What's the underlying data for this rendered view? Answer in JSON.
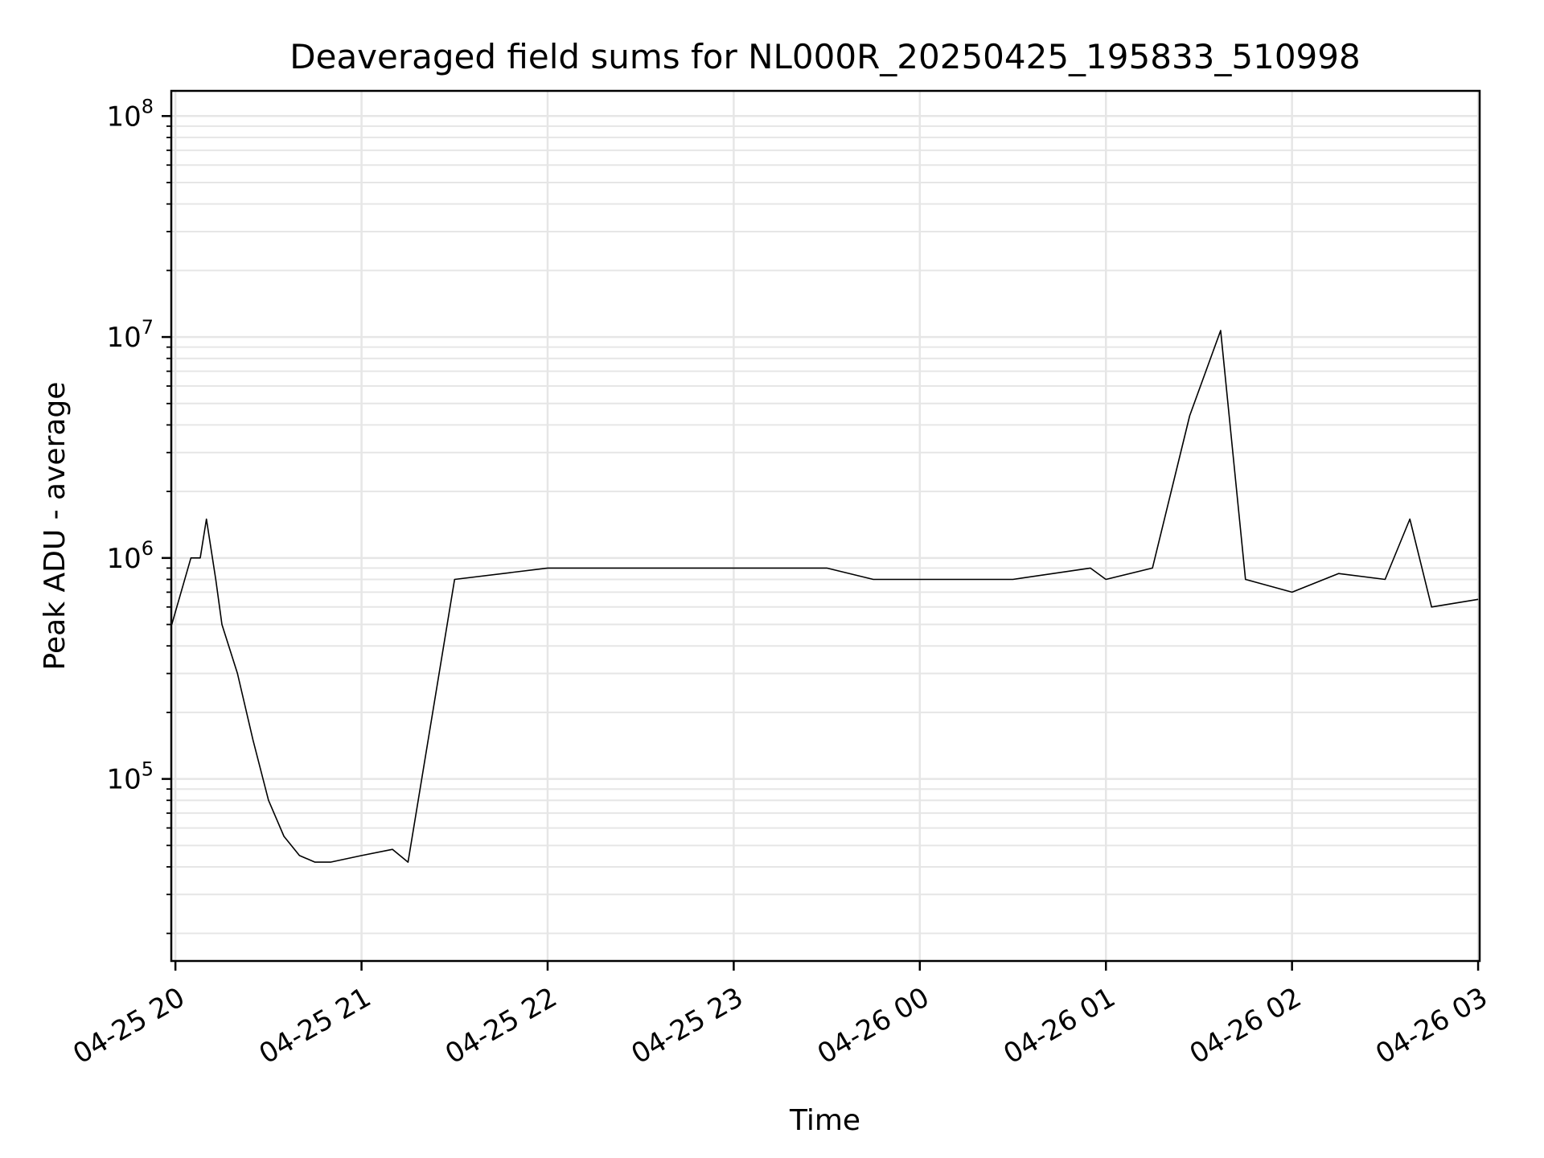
{
  "chart_data": {
    "type": "line",
    "title": "Deaveraged field sums for NL000R_20250425_195833_510998",
    "xlabel": "Time",
    "ylabel": "Peak ADU - average",
    "yscale": "log",
    "ylim": [
      15000,
      130000000
    ],
    "xlim": [
      "2025-04-25 19:58:40",
      "2025-04-26 03:00:30"
    ],
    "x_tick_labels": [
      "04-25 20",
      "04-25 21",
      "04-25 22",
      "04-25 23",
      "04-26 00",
      "04-26 01",
      "04-26 02",
      "04-26 03"
    ],
    "x_tick_times": [
      "2025-04-25 20:00",
      "2025-04-25 21:00",
      "2025-04-25 22:00",
      "2025-04-25 23:00",
      "2025-04-26 00:00",
      "2025-04-26 01:00",
      "2025-04-26 02:00",
      "2025-04-26 03:00"
    ],
    "y_tick_values": [
      100000,
      1000000,
      10000000,
      100000000
    ],
    "y_tick_labels": [
      {
        "base": "10",
        "exp": "5"
      },
      {
        "base": "10",
        "exp": "6"
      },
      {
        "base": "10",
        "exp": "7"
      },
      {
        "base": "10",
        "exp": "8"
      }
    ],
    "grid": true,
    "line_color": "#000000",
    "grid_color": "#e6e6e6",
    "series": [
      {
        "x": [
          "2025-04-25 19:58:50",
          "2025-04-25 20:05",
          "2025-04-25 20:08",
          "2025-04-25 20:10",
          "2025-04-25 20:13",
          "2025-04-25 20:15",
          "2025-04-25 20:20",
          "2025-04-25 20:25",
          "2025-04-25 20:30",
          "2025-04-25 20:35",
          "2025-04-25 20:40",
          "2025-04-25 20:45",
          "2025-04-25 20:50",
          "2025-04-25 21:00",
          "2025-04-25 21:10",
          "2025-04-25 21:15",
          "2025-04-25 21:30",
          "2025-04-25 22:00",
          "2025-04-25 22:30",
          "2025-04-25 23:00",
          "2025-04-25 23:30",
          "2025-04-25 23:45",
          "2025-04-26 00:00",
          "2025-04-26 00:30",
          "2025-04-26 00:55",
          "2025-04-26 01:00",
          "2025-04-26 01:15",
          "2025-04-26 01:27",
          "2025-04-26 01:37",
          "2025-04-26 01:45",
          "2025-04-26 02:00",
          "2025-04-26 02:15",
          "2025-04-26 02:30",
          "2025-04-26 02:38",
          "2025-04-26 02:45",
          "2025-04-26 03:00"
        ],
        "y": [
          500000,
          1000000,
          1000000,
          1500000,
          800000,
          500000,
          300000,
          150000,
          80000,
          55000,
          45000,
          42000,
          42000,
          45000,
          48000,
          42000,
          800000,
          900000,
          900000,
          900000,
          900000,
          800000,
          800000,
          800000,
          900000,
          800000,
          900000,
          4400000,
          10700000,
          800000,
          700000,
          850000,
          800000,
          1500000,
          600000,
          650000
        ]
      }
    ]
  }
}
